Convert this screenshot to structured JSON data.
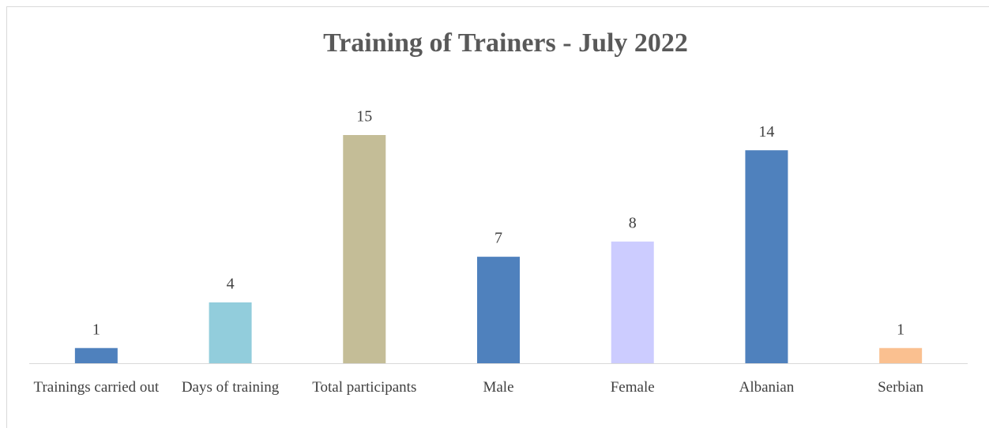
{
  "chart_data": {
    "type": "bar",
    "title": "Training of Trainers - July 2022",
    "categories": [
      "Trainings carried out",
      "Days of training",
      "Total participants",
      "Male",
      "Female",
      "Albanian",
      "Serbian"
    ],
    "values": [
      1,
      4,
      15,
      7,
      8,
      14,
      1
    ],
    "colors": [
      "#4f81bd",
      "#92cddc",
      "#c4bd97",
      "#4f81bd",
      "#ccccff",
      "#4f81bd",
      "#fac090"
    ]
  }
}
